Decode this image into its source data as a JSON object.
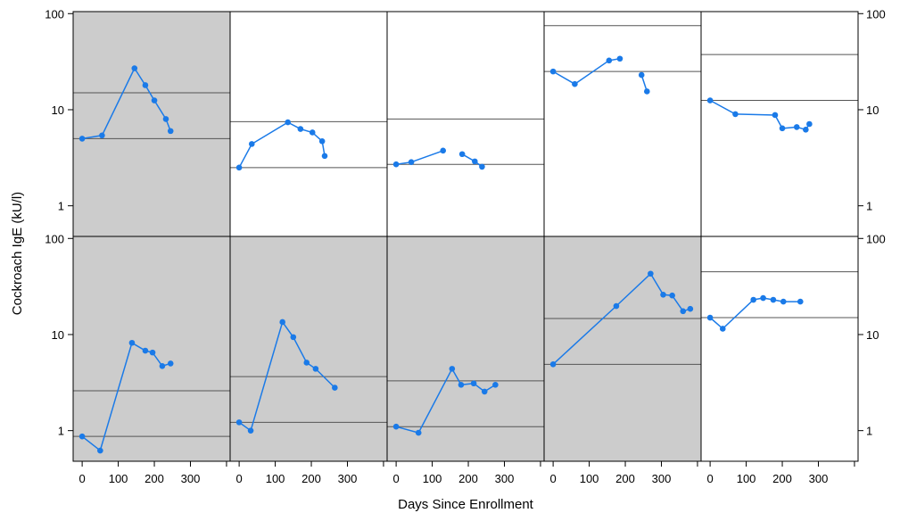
{
  "chart_data": {
    "type": "line",
    "title": "",
    "xlabel": "Days Since Enrollment",
    "ylabel": "Cockroach IgE (kU/l)",
    "ylog": true,
    "ylim": [
      0.48,
      105
    ],
    "xlim": [
      -25,
      410
    ],
    "y_ticks": [
      "1",
      "10",
      "100"
    ],
    "x_ticks": [
      "0",
      "100",
      "200",
      "300"
    ],
    "grid": false,
    "line_color": "#1a7ae8",
    "shade_color": "#cccccc",
    "panels": [
      {
        "row": 0,
        "col": 0,
        "shaded": true,
        "hlines": [
          5,
          15
        ],
        "x": [
          0,
          55,
          145,
          175,
          200,
          232,
          245
        ],
        "y": [
          5.0,
          5.4,
          27,
          18,
          12.5,
          8,
          6
        ]
      },
      {
        "row": 0,
        "col": 1,
        "shaded": false,
        "hlines": [
          2.5,
          7.5
        ],
        "x": [
          0,
          35,
          135,
          170,
          203,
          230,
          237
        ],
        "y": [
          2.5,
          4.4,
          7.4,
          6.3,
          5.8,
          4.7,
          3.3
        ]
      },
      {
        "row": 0,
        "col": 2,
        "shaded": false,
        "hlines": [
          2.7,
          8
        ],
        "x": [
          0,
          42,
          130
        ],
        "y": [
          2.7,
          2.85,
          3.75
        ],
        "x2": [
          183,
          218,
          238
        ],
        "y2": [
          3.45,
          2.9,
          2.55
        ]
      },
      {
        "row": 0,
        "col": 3,
        "shaded": false,
        "hlines": [
          25,
          75
        ],
        "x": [
          0,
          60,
          155,
          185
        ],
        "y": [
          25,
          18.5,
          32.5,
          34
        ],
        "x2": [
          245,
          260
        ],
        "y2": [
          23,
          15.5
        ]
      },
      {
        "row": 0,
        "col": 4,
        "shaded": false,
        "hlines": [
          12.5,
          37.5
        ],
        "x": [
          0,
          70,
          180,
          200,
          240,
          265,
          275
        ],
        "y": [
          12.5,
          9,
          8.8,
          6.4,
          6.6,
          6.2,
          7.1
        ]
      },
      {
        "row": 1,
        "col": 0,
        "shaded": true,
        "hlines": [
          0.87,
          2.6
        ],
        "x": [
          0,
          50,
          138,
          175,
          195,
          222,
          245
        ],
        "y": [
          0.87,
          0.62,
          8.2,
          6.8,
          6.5,
          4.7,
          5.0
        ]
      },
      {
        "row": 1,
        "col": 1,
        "shaded": true,
        "hlines": [
          1.22,
          3.65
        ],
        "x": [
          0,
          32,
          120,
          150,
          187,
          212,
          265
        ],
        "y": [
          1.22,
          1.0,
          13.5,
          9.4,
          5.1,
          4.4,
          2.8
        ]
      },
      {
        "row": 1,
        "col": 2,
        "shaded": true,
        "hlines": [
          1.1,
          3.3
        ],
        "x": [
          0,
          62,
          155,
          180,
          215,
          245,
          275
        ],
        "y": [
          1.1,
          0.95,
          4.4,
          3.0,
          3.1,
          2.55,
          3.0
        ]
      },
      {
        "row": 1,
        "col": 3,
        "shaded": true,
        "hlines": [
          4.9,
          14.7
        ],
        "x": [
          0,
          175,
          270,
          305,
          330,
          360,
          380
        ],
        "y": [
          4.9,
          19.8,
          43,
          26,
          25.5,
          17.5,
          18.5
        ]
      },
      {
        "row": 1,
        "col": 4,
        "shaded": false,
        "hlines": [
          15,
          45
        ],
        "x": [
          0,
          35,
          120,
          147,
          175,
          203,
          250
        ],
        "y": [
          15,
          11.5,
          23,
          24,
          23,
          22,
          22
        ]
      }
    ]
  }
}
